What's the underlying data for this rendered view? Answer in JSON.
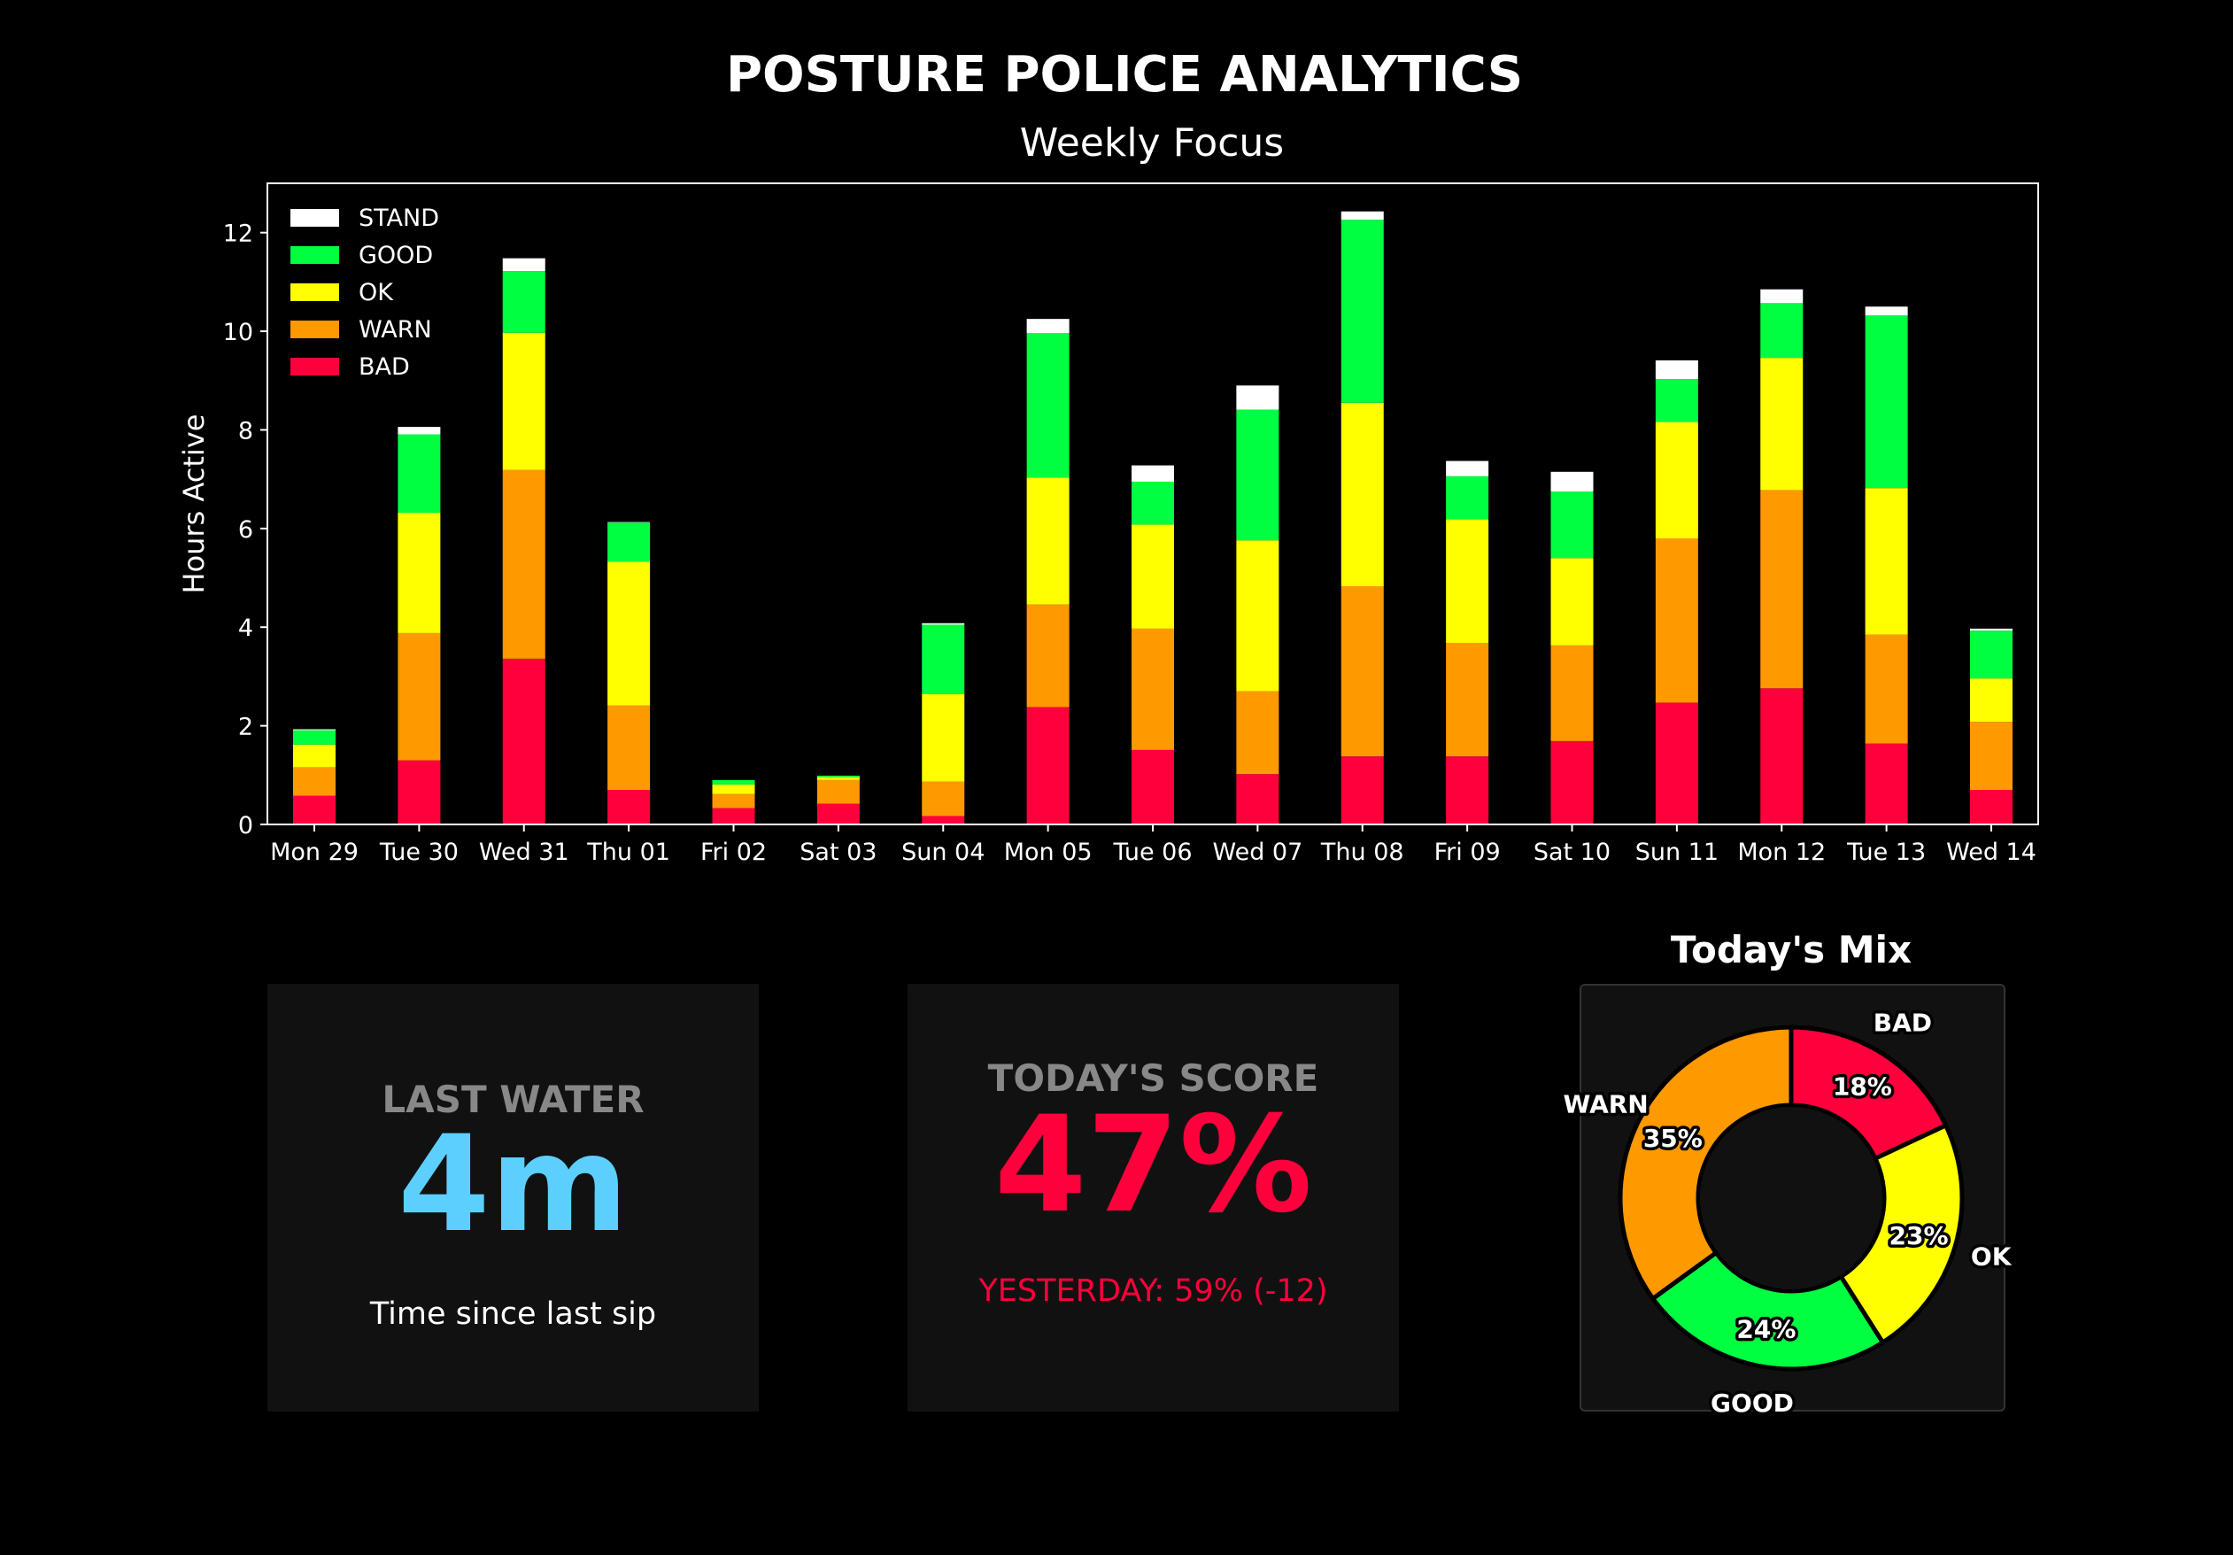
{
  "header": {
    "title": "POSTURE POLICE ANALYTICS",
    "subtitle": "Weekly Focus"
  },
  "colors": {
    "STAND": "#ffffff",
    "GOOD": "#00ff41",
    "OK": "#ffff00",
    "WARN": "#ff9900",
    "BAD": "#ff003c",
    "water": "#5ccfff",
    "score": "#ff003c",
    "card_bg": "#111111"
  },
  "chart_data": [
    {
      "type": "bar",
      "stacked": true,
      "ylabel": "Hours Active",
      "ylim": [
        0,
        13
      ],
      "yticks": [
        0,
        2,
        4,
        6,
        8,
        10,
        12
      ],
      "legend_position": "top-left",
      "grid": false,
      "categories": [
        "Mon 29",
        "Tue 30",
        "Wed 31",
        "Thu 01",
        "Fri 02",
        "Sat 03",
        "Sun 04",
        "Mon 05",
        "Tue 06",
        "Wed 07",
        "Thu 08",
        "Fri 09",
        "Sat 10",
        "Sun 11",
        "Mon 12",
        "Tue 13",
        "Wed 14"
      ],
      "series": [
        {
          "name": "BAD",
          "values": [
            0.58,
            1.3,
            3.36,
            0.7,
            0.33,
            0.42,
            0.17,
            2.38,
            1.51,
            1.02,
            1.38,
            1.38,
            1.69,
            2.47,
            2.76,
            1.64,
            0.7
          ]
        },
        {
          "name": "WARN",
          "values": [
            0.58,
            2.58,
            3.83,
            1.71,
            0.29,
            0.48,
            0.7,
            2.08,
            2.46,
            1.68,
            3.45,
            2.3,
            1.94,
            3.33,
            4.02,
            2.21,
            1.38
          ]
        },
        {
          "name": "OK",
          "values": [
            0.46,
            2.44,
            2.78,
            2.92,
            0.19,
            0.06,
            1.77,
            2.57,
            2.11,
            3.06,
            3.72,
            2.51,
            1.77,
            2.36,
            2.68,
            2.97,
            0.88
          ]
        },
        {
          "name": "GOOD",
          "values": [
            0.29,
            1.59,
            1.25,
            0.79,
            0.09,
            0.03,
            1.41,
            2.93,
            0.87,
            2.65,
            3.71,
            0.87,
            1.35,
            0.87,
            1.11,
            3.5,
            0.97
          ]
        },
        {
          "name": "STAND",
          "values": [
            0.02,
            0.15,
            0.26,
            0.01,
            0.0,
            0.0,
            0.03,
            0.29,
            0.33,
            0.49,
            0.17,
            0.31,
            0.4,
            0.38,
            0.28,
            0.18,
            0.04
          ]
        }
      ],
      "legend_order": [
        "STAND",
        "GOOD",
        "OK",
        "WARN",
        "BAD"
      ]
    },
    {
      "type": "pie",
      "donut": true,
      "title": "Today's Mix",
      "slices": [
        {
          "label": "BAD",
          "value": 18,
          "text": "18%"
        },
        {
          "label": "OK",
          "value": 23,
          "text": "23%"
        },
        {
          "label": "GOOD",
          "value": 24,
          "text": "24%"
        },
        {
          "label": "WARN",
          "value": 35,
          "text": "35%"
        }
      ],
      "start": "top",
      "direction": "clockwise"
    }
  ],
  "cards": {
    "water": {
      "label": "LAST WATER",
      "value": "4m",
      "caption": "Time since last sip"
    },
    "score": {
      "label": "TODAY'S SCORE",
      "value": "47%",
      "caption": "YESTERDAY: 59% (-12)"
    }
  }
}
